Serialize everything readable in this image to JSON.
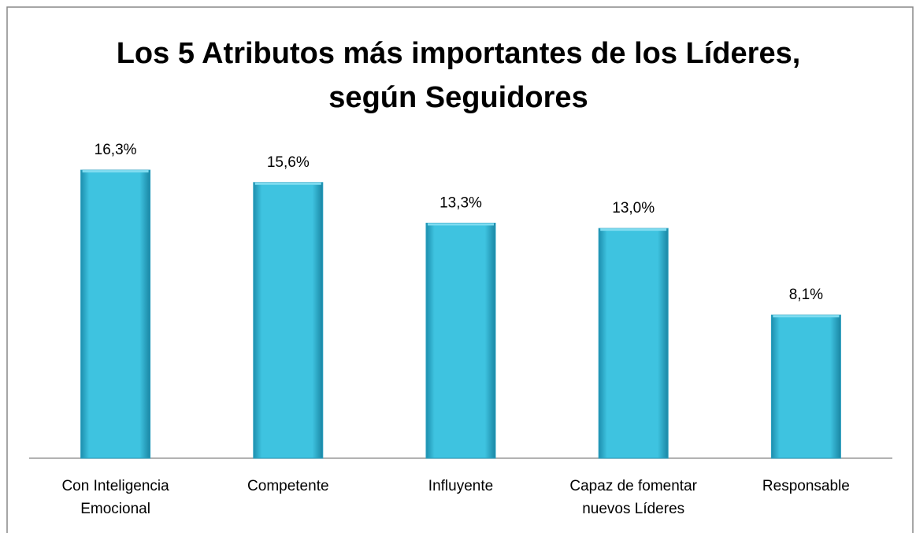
{
  "chart_data": {
    "type": "bar",
    "title": "Los 5 Atributos más importantes de los Líderes, según Seguidores",
    "categories": [
      "Con Inteligencia Emocional",
      "Competente",
      "Influyente",
      "Capaz de fomentar nuevos Líderes",
      "Responsable"
    ],
    "values": [
      16.3,
      15.6,
      13.3,
      13.0,
      8.1
    ],
    "value_labels": [
      "16,3%",
      "15,6%",
      "13,3%",
      "13,0%",
      "8,1%"
    ],
    "color": "#3ec3e0"
  }
}
